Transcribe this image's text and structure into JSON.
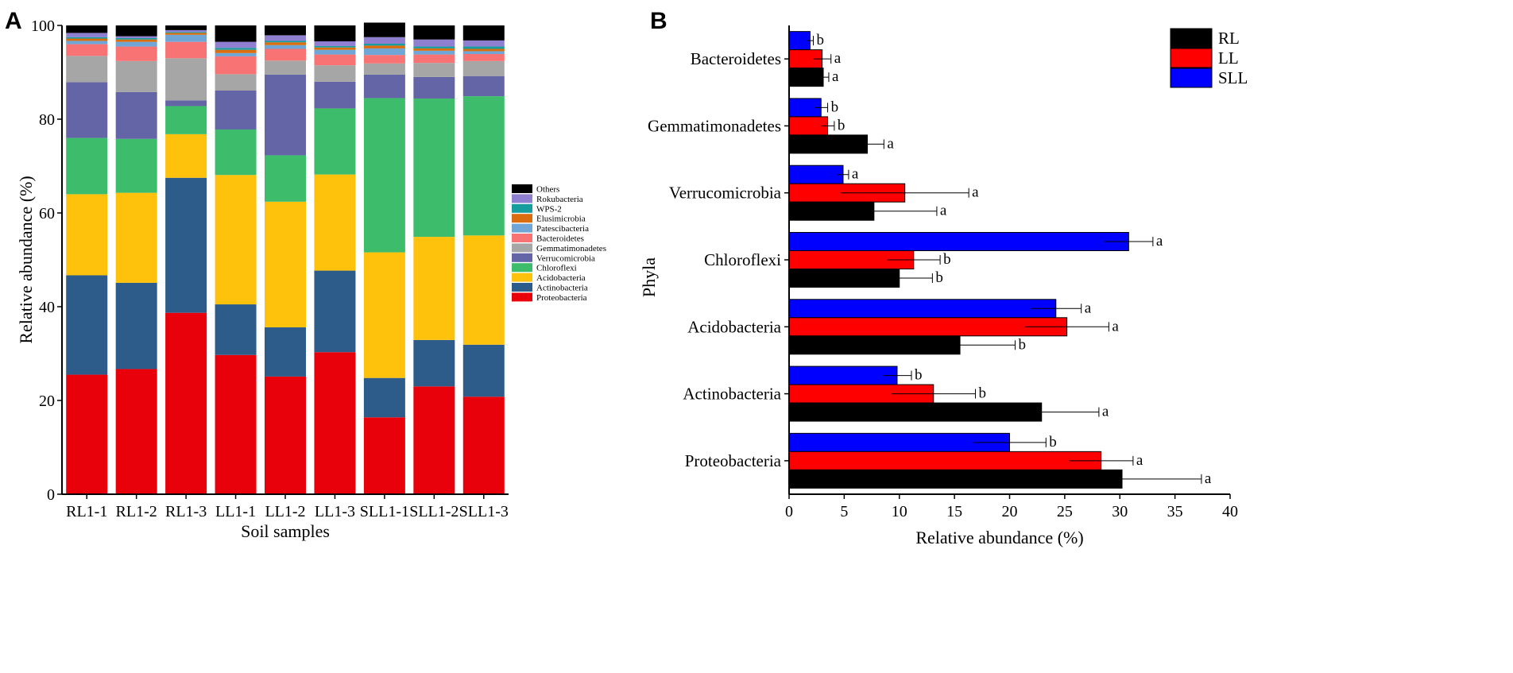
{
  "chart_data": [
    {
      "panel": "A",
      "type": "bar",
      "stacked": true,
      "xlabel": "Soil samples",
      "ylabel": "Relative abundance (%)",
      "ylim": [
        0,
        100
      ],
      "yticks": [
        0,
        20,
        40,
        60,
        80,
        100
      ],
      "legend_position": "right",
      "categories": [
        "RL1-1",
        "RL1-2",
        "RL1-3",
        "LL1-1",
        "LL1-2",
        "LL1-3",
        "SLL1-1",
        "SLL1-2",
        "SLL1-3"
      ],
      "series": [
        {
          "name": "Proteobacteria",
          "color": "#e8000b",
          "values": [
            25.5,
            26.7,
            38.7,
            29.7,
            25.1,
            30.3,
            16.4,
            23.0,
            20.8
          ]
        },
        {
          "name": "Actinobacteria",
          "color": "#2e5c8a",
          "values": [
            21.2,
            18.4,
            28.8,
            10.8,
            10.5,
            17.4,
            8.4,
            9.9,
            11.1
          ]
        },
        {
          "name": "Acidobacteria",
          "color": "#fec20c",
          "values": [
            17.3,
            19.2,
            9.3,
            27.6,
            26.8,
            20.5,
            26.8,
            22.0,
            23.3
          ]
        },
        {
          "name": "Chloroflexi",
          "color": "#3dbd6b",
          "values": [
            12.0,
            11.5,
            6.0,
            9.7,
            9.9,
            14.1,
            32.9,
            29.5,
            29.7
          ]
        },
        {
          "name": "Verrucomicrobia",
          "color": "#6465a6",
          "values": [
            11.9,
            10.0,
            1.2,
            8.3,
            17.2,
            5.7,
            5.0,
            4.6,
            4.3
          ]
        },
        {
          "name": "Gemmatimonadetes",
          "color": "#a6a6a6",
          "values": [
            5.6,
            6.6,
            9.0,
            3.5,
            3.0,
            3.5,
            2.4,
            3.0,
            3.2
          ]
        },
        {
          "name": "Bacteroidetes",
          "color": "#f87374",
          "values": [
            2.5,
            3.1,
            3.5,
            3.8,
            2.5,
            2.3,
            1.8,
            1.8,
            1.5
          ]
        },
        {
          "name": "Patescibacteria",
          "color": "#6fa6d6",
          "values": [
            0.7,
            1.0,
            1.5,
            0.7,
            0.8,
            1.0,
            1.4,
            0.8,
            0.6
          ]
        },
        {
          "name": "Elusimicrobia",
          "color": "#d96d10",
          "values": [
            0.5,
            0.5,
            0.4,
            0.7,
            0.6,
            0.5,
            0.6,
            0.5,
            0.5
          ]
        },
        {
          "name": "WPS-2",
          "color": "#169d9d",
          "values": [
            0.3,
            0.3,
            0.2,
            0.4,
            0.3,
            0.3,
            0.4,
            0.4,
            0.5
          ]
        },
        {
          "name": "Rokubacteria",
          "color": "#8e7fd0",
          "values": [
            0.9,
            0.4,
            0.4,
            1.3,
            1.2,
            1.0,
            1.4,
            1.5,
            1.3
          ]
        },
        {
          "name": "Others",
          "color": "#000000",
          "values": [
            1.6,
            2.3,
            1.0,
            3.5,
            2.1,
            3.4,
            3.1,
            3.0,
            3.2
          ]
        }
      ]
    },
    {
      "panel": "B",
      "type": "bar",
      "orientation": "horizontal",
      "xlabel": "Relative abundance (%)",
      "ylabel": "Phyla",
      "xlim": [
        0,
        40
      ],
      "xticks": [
        0,
        5,
        10,
        15,
        20,
        25,
        30,
        35,
        40
      ],
      "legend_position": "top-right",
      "categories": [
        "Bacteroidetes",
        "Gemmatimonadetes",
        "Verrucomicrobia",
        "Chloroflexi",
        "Acidobacteria",
        "Actinobacteria",
        "Proteobacteria"
      ],
      "series": [
        {
          "name": "RL",
          "color": "#000000",
          "values": [
            3.1,
            7.1,
            7.7,
            10.0,
            15.5,
            22.9,
            30.2
          ],
          "errors": [
            0.5,
            1.5,
            5.7,
            3.0,
            5.0,
            5.2,
            7.2
          ],
          "letters": [
            "a",
            "a",
            "a",
            "b",
            "b",
            "a",
            "a"
          ]
        },
        {
          "name": "LL",
          "color": "#ff0000",
          "values": [
            3.0,
            3.5,
            10.5,
            11.3,
            25.2,
            13.1,
            28.3
          ],
          "errors": [
            0.8,
            0.6,
            5.8,
            2.4,
            3.8,
            3.8,
            2.9
          ],
          "letters": [
            "a",
            "b",
            "a",
            "b",
            "a",
            "b",
            "a"
          ]
        },
        {
          "name": "SLL",
          "color": "#0000ff",
          "values": [
            1.9,
            2.9,
            4.9,
            30.8,
            24.2,
            9.8,
            20.0
          ],
          "errors": [
            0.3,
            0.6,
            0.5,
            2.2,
            2.3,
            1.3,
            3.3
          ],
          "letters": [
            "b",
            "b",
            "a",
            "a",
            "a",
            "b",
            "b"
          ]
        }
      ]
    }
  ]
}
